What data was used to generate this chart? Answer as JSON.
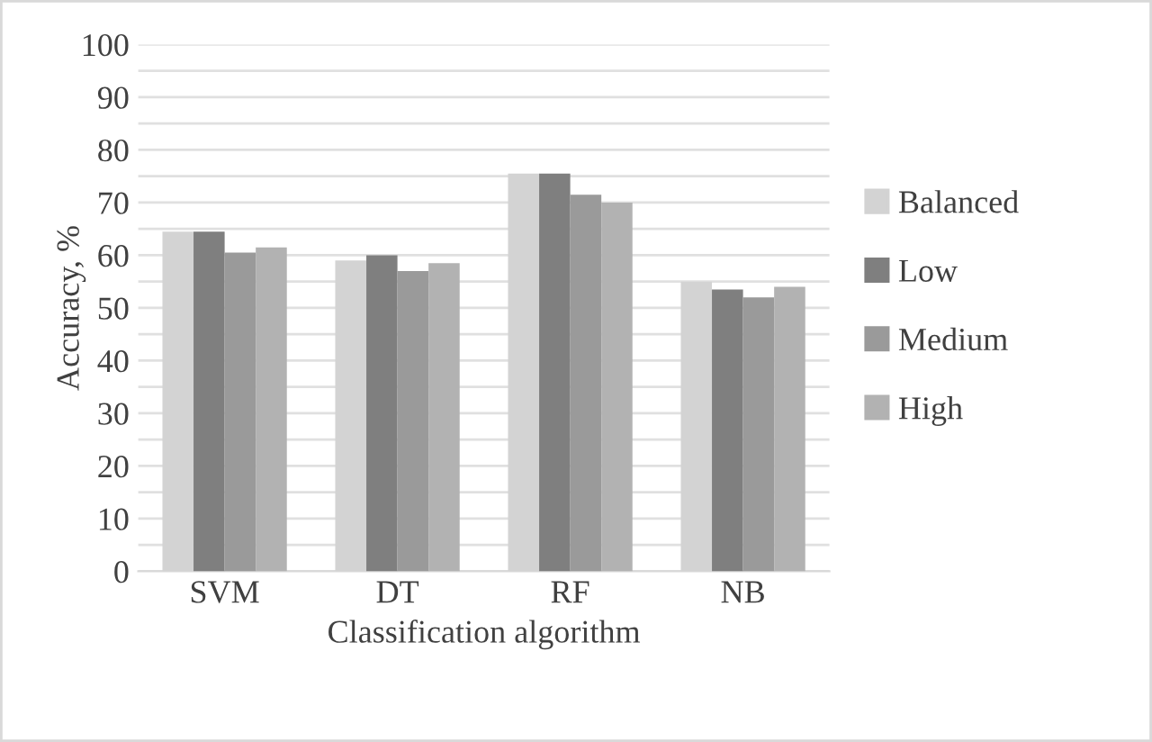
{
  "chart_data": {
    "type": "bar",
    "xlabel": "Classification algorithm",
    "ylabel": "Accuracy, %",
    "categories": [
      "SVM",
      "DT",
      "RF",
      "NB"
    ],
    "series": [
      {
        "name": "Balanced",
        "color": "#d3d3d3",
        "values": [
          64.5,
          59,
          75.5,
          55
        ]
      },
      {
        "name": "Low",
        "color": "#7f7f7f",
        "values": [
          64.5,
          60,
          75.5,
          53.5
        ]
      },
      {
        "name": "Medium",
        "color": "#9a9a9a",
        "values": [
          60.5,
          57,
          71.5,
          52
        ]
      },
      {
        "name": "High",
        "color": "#b2b2b2",
        "values": [
          61.5,
          58.5,
          70,
          54
        ]
      }
    ],
    "ylim": [
      0,
      100
    ],
    "yticks": [
      0,
      {
        "value": 5,
        "label": null
      },
      10,
      {
        "value": 15,
        "label": null
      },
      20,
      {
        "value": 25,
        "label": null
      },
      30,
      {
        "value": 35,
        "label": null
      },
      40,
      {
        "value": 45,
        "label": null
      },
      50,
      {
        "value": 55,
        "label": null
      },
      60,
      {
        "value": 65,
        "label": null
      },
      70,
      {
        "value": 75,
        "label": null
      },
      80,
      {
        "value": 85,
        "label": null
      },
      90,
      {
        "value": 95,
        "label": null
      },
      100
    ],
    "grid": "y",
    "legend": "right"
  }
}
